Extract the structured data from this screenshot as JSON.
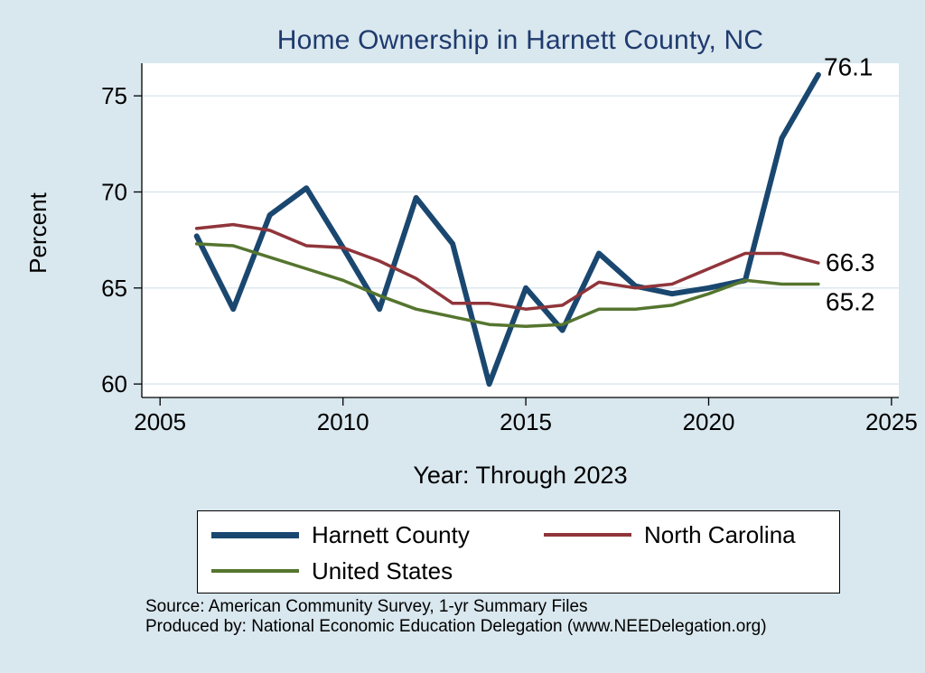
{
  "page": {
    "background_color": "#d9e7ee",
    "title": "Home Ownership in Harnett County, NC",
    "title_color": "#1e3a6e",
    "y_axis_label": "Percent",
    "x_axis_label": "Year: Through 2023",
    "source_line_1": "Source: American Community Survey, 1-yr Summary Files",
    "source_line_2": "Produced by: National Economic Education Delegation (www.NEEDelegation.org)"
  },
  "legend": {
    "items": [
      {
        "label": "Harnett County",
        "color": "#1a476f",
        "thickness": 7
      },
      {
        "label": "North Carolina",
        "color": "#90353b",
        "thickness": 4
      },
      {
        "label": "United States",
        "color": "#55752f",
        "thickness": 4
      }
    ]
  },
  "chart_data": {
    "type": "line",
    "title": "Home Ownership in Harnett County, NC",
    "xlabel": "Year: Through 2023",
    "ylabel": "Percent",
    "xlim": [
      2004.5,
      2025.2
    ],
    "ylim": [
      59.3,
      76.7
    ],
    "x_ticks": [
      2005,
      2010,
      2015,
      2020,
      2025
    ],
    "y_ticks": [
      60,
      65,
      70,
      75
    ],
    "grid": true,
    "gridline_color": "#d9e7ee",
    "plot_background": "#ffffff",
    "legend_position": "bottom",
    "x": [
      2006,
      2007,
      2008,
      2009,
      2010,
      2011,
      2012,
      2013,
      2014,
      2015,
      2016,
      2017,
      2018,
      2019,
      2020,
      2021,
      2022,
      2023
    ],
    "series": [
      {
        "name": "Harnett County",
        "color": "#1a476f",
        "line_width": 6,
        "values": [
          67.7,
          63.9,
          68.8,
          70.2,
          67.1,
          63.9,
          69.7,
          67.3,
          60.0,
          65.0,
          62.8,
          66.8,
          65.1,
          64.7,
          65.0,
          65.4,
          72.8,
          76.1
        ]
      },
      {
        "name": "North Carolina",
        "color": "#90353b",
        "line_width": 3.5,
        "values": [
          68.1,
          68.3,
          68.0,
          67.2,
          67.1,
          66.4,
          65.5,
          64.2,
          64.2,
          63.9,
          64.1,
          65.3,
          65.0,
          65.2,
          66.0,
          66.8,
          66.8,
          66.3
        ]
      },
      {
        "name": "United States",
        "color": "#55752f",
        "line_width": 3.5,
        "values": [
          67.3,
          67.2,
          66.6,
          66.0,
          65.4,
          64.6,
          63.9,
          63.5,
          63.1,
          63.0,
          63.1,
          63.9,
          63.9,
          64.1,
          64.7,
          65.4,
          65.2,
          65.2
        ]
      }
    ],
    "annotations": [
      {
        "text": "76.1",
        "x": 2023.1,
        "y": 76.5
      },
      {
        "text": "66.3",
        "x": 2023.15,
        "y": 66.3
      },
      {
        "text": "65.2",
        "x": 2023.15,
        "y": 64.25
      }
    ]
  }
}
